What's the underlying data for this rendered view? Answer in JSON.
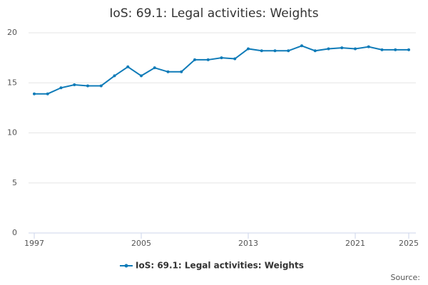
{
  "chart_data": {
    "type": "line",
    "title": "IoS: 69.1: Legal activities: Weights",
    "x": [
      1997,
      1998,
      1999,
      2000,
      2001,
      2002,
      2003,
      2004,
      2005,
      2006,
      2007,
      2008,
      2009,
      2010,
      2011,
      2012,
      2013,
      2014,
      2015,
      2016,
      2017,
      2018,
      2019,
      2020,
      2021,
      2022,
      2023,
      2024,
      2025
    ],
    "series": [
      {
        "name": "IoS: 69.1: Legal activities: Weights",
        "color": "#0f7bb8",
        "values": [
          13.9,
          13.9,
          14.5,
          14.8,
          14.7,
          14.7,
          15.7,
          16.6,
          15.7,
          16.5,
          16.1,
          16.1,
          17.3,
          17.3,
          17.5,
          17.4,
          18.4,
          18.2,
          18.2,
          18.2,
          18.7,
          18.2,
          18.4,
          18.5,
          18.4,
          18.6,
          18.3,
          18.3,
          18.3
        ]
      }
    ],
    "xlim": [
      1997,
      2025
    ],
    "xticks": [
      1997,
      2005,
      2013,
      2021,
      2025
    ],
    "ylim": [
      0,
      20
    ],
    "yticks": [
      0,
      5,
      10,
      15,
      20
    ],
    "grid": true,
    "source": "Source:"
  }
}
